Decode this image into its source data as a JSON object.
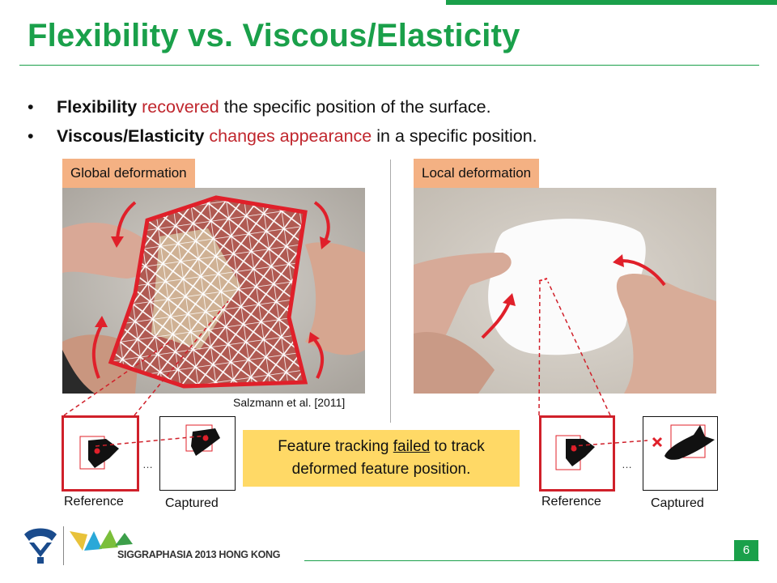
{
  "slide": {
    "title": "Flexibility vs. Viscous/Elasticity",
    "page_number": "6"
  },
  "bullets": [
    {
      "bold": "Flexibility",
      "red": " recovered",
      "rest": " the specific position of the surface."
    },
    {
      "bold": "Viscous/Elasticity",
      "red": " changes appearance",
      "rest": " in a specific position."
    }
  ],
  "left_panel": {
    "tag": "Global deformation",
    "citation": "Salzmann et al. [2011]",
    "reference_label": "Reference",
    "captured_label": "Captured",
    "ellipsis": "…"
  },
  "right_panel": {
    "tag": "Local deformation",
    "reference_label": "Reference",
    "captured_label": "Captured",
    "ellipsis": "…"
  },
  "callout": {
    "line1_pre": "Feature tracking ",
    "line1_underlined": "failed",
    "line1_post": " to track",
    "line2": "deformed feature position."
  },
  "footer": {
    "conference": "SIGGRAPHASIA 2013 HONG KONG"
  },
  "colors": {
    "accent_green": "#1aa04a",
    "highlight_red": "#c0262d",
    "tag_orange": "#f4b183",
    "callout_yellow": "#ffd966"
  }
}
